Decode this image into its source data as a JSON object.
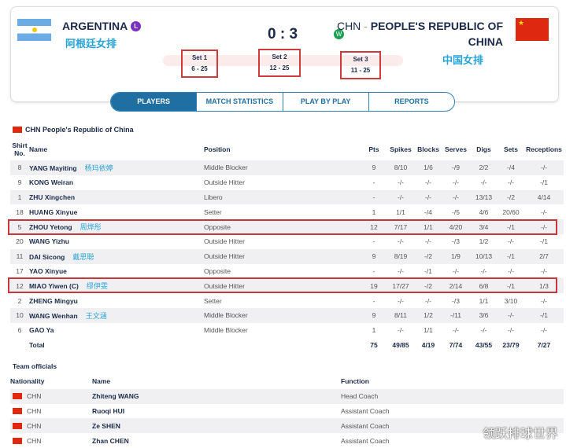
{
  "header": {
    "home": {
      "name": "ARGENTINA",
      "cn": "阿根廷女排",
      "result": "L"
    },
    "away": {
      "code": "CHN",
      "sep": " - ",
      "name": "PEOPLE'S REPUBLIC OF",
      "name2": "CHINA",
      "cn": "中国女排",
      "result": "W"
    },
    "score": "0 : 3",
    "sets": [
      {
        "label": "Set 1",
        "score": "6 - 25"
      },
      {
        "label": "Set 2",
        "score": "12 - 25"
      },
      {
        "label": "Set 3",
        "score": "11 - 25"
      }
    ]
  },
  "tabs": [
    "PLAYERS",
    "MATCH STATISTICS",
    "PLAY BY PLAY",
    "REPORTS"
  ],
  "team_title": "CHN  People's Republic of China",
  "columns": {
    "shirt": "Shirt No.",
    "name": "Name",
    "position": "Position",
    "pts": "Pts",
    "spikes": "Spikes",
    "blocks": "Blocks",
    "serves": "Serves",
    "digs": "Digs",
    "sets": "Sets",
    "receptions": "Receptions"
  },
  "players": [
    {
      "no": "8",
      "name": "YANG Mayiting",
      "cn": "杨玛依婷",
      "pos": "Middle Blocker",
      "s": [
        "9",
        "8/10",
        "1/6",
        "-/9",
        "2/2",
        "-/4",
        "-/-"
      ]
    },
    {
      "no": "9",
      "name": "KONG Weiran",
      "cn": "",
      "pos": "Outside Hitter",
      "s": [
        "-",
        "-/-",
        "-/-",
        "-/-",
        "-/-",
        "-/-",
        "-/1"
      ]
    },
    {
      "no": "1",
      "name": "ZHU Xingchen",
      "cn": "",
      "pos": "Libero",
      "s": [
        "-",
        "-/-",
        "-/-",
        "-/-",
        "13/13",
        "-/2",
        "4/14"
      ]
    },
    {
      "no": "18",
      "name": "HUANG Xinyue",
      "cn": "",
      "pos": "Setter",
      "s": [
        "1",
        "1/1",
        "-/4",
        "-/5",
        "4/6",
        "20/60",
        "-/-"
      ]
    },
    {
      "no": "5",
      "name": "ZHOU Yetong",
      "cn": "周烨彤",
      "pos": "Opposite",
      "s": [
        "12",
        "7/17",
        "1/1",
        "4/20",
        "3/4",
        "-/1",
        "-/-"
      ]
    },
    {
      "no": "20",
      "name": "WANG Yizhu",
      "cn": "",
      "pos": "Outside Hitter",
      "s": [
        "-",
        "-/-",
        "-/-",
        "-/3",
        "1/2",
        "-/-",
        "-/1"
      ]
    },
    {
      "no": "11",
      "name": "DAI Sicong",
      "cn": "戴思聪",
      "pos": "Outside Hitter",
      "s": [
        "9",
        "8/19",
        "-/2",
        "1/9",
        "10/13",
        "-/1",
        "2/7"
      ]
    },
    {
      "no": "17",
      "name": "YAO Xinyue",
      "cn": "",
      "pos": "Opposite",
      "s": [
        "-",
        "-/-",
        "-/1",
        "-/-",
        "-/-",
        "-/-",
        "-/-"
      ]
    },
    {
      "no": "12",
      "name": "MIAO Yiwen  (C)",
      "cn": "缪伊雯",
      "pos": "Outside Hitter",
      "s": [
        "19",
        "17/27",
        "-/2",
        "2/14",
        "6/8",
        "-/1",
        "1/3"
      ]
    },
    {
      "no": "2",
      "name": "ZHENG Mingyu",
      "cn": "",
      "pos": "Setter",
      "s": [
        "-",
        "-/-",
        "-/-",
        "-/3",
        "1/1",
        "3/10",
        "-/-"
      ]
    },
    {
      "no": "10",
      "name": "WANG Wenhan",
      "cn": "王文涵",
      "pos": "Middle Blocker",
      "s": [
        "9",
        "8/11",
        "1/2",
        "-/11",
        "3/6",
        "-/-",
        "-/1"
      ]
    },
    {
      "no": "6",
      "name": "GAO Ya",
      "cn": "",
      "pos": "Middle Blocker",
      "s": [
        "1",
        "-/-",
        "1/1",
        "-/-",
        "-/-",
        "-/-",
        "-/-"
      ]
    }
  ],
  "total": {
    "label": "Total",
    "s": [
      "75",
      "49/85",
      "4/19",
      "7/74",
      "43/55",
      "23/79",
      "7/27"
    ]
  },
  "officials": {
    "title": "Team officials",
    "columns": {
      "nat": "Nationality",
      "name": "Name",
      "func": "Function"
    },
    "rows": [
      {
        "nat": "CHN",
        "name": "Zhiteng WANG",
        "func": "Head Coach"
      },
      {
        "nat": "CHN",
        "name": "Ruoqi HUI",
        "func": "Assistant Coach"
      },
      {
        "nat": "CHN",
        "name": "Ze SHEN",
        "func": "Assistant Coach"
      },
      {
        "nat": "CHN",
        "name": "Zhan CHEN",
        "func": "Assistant Coach"
      }
    ]
  },
  "watermark": "领跃排球世界",
  "colors": {
    "loss": "#7b2fbf",
    "win": "#1aa053",
    "accent": "#1f6fa3",
    "highlight": "#c9363a"
  }
}
